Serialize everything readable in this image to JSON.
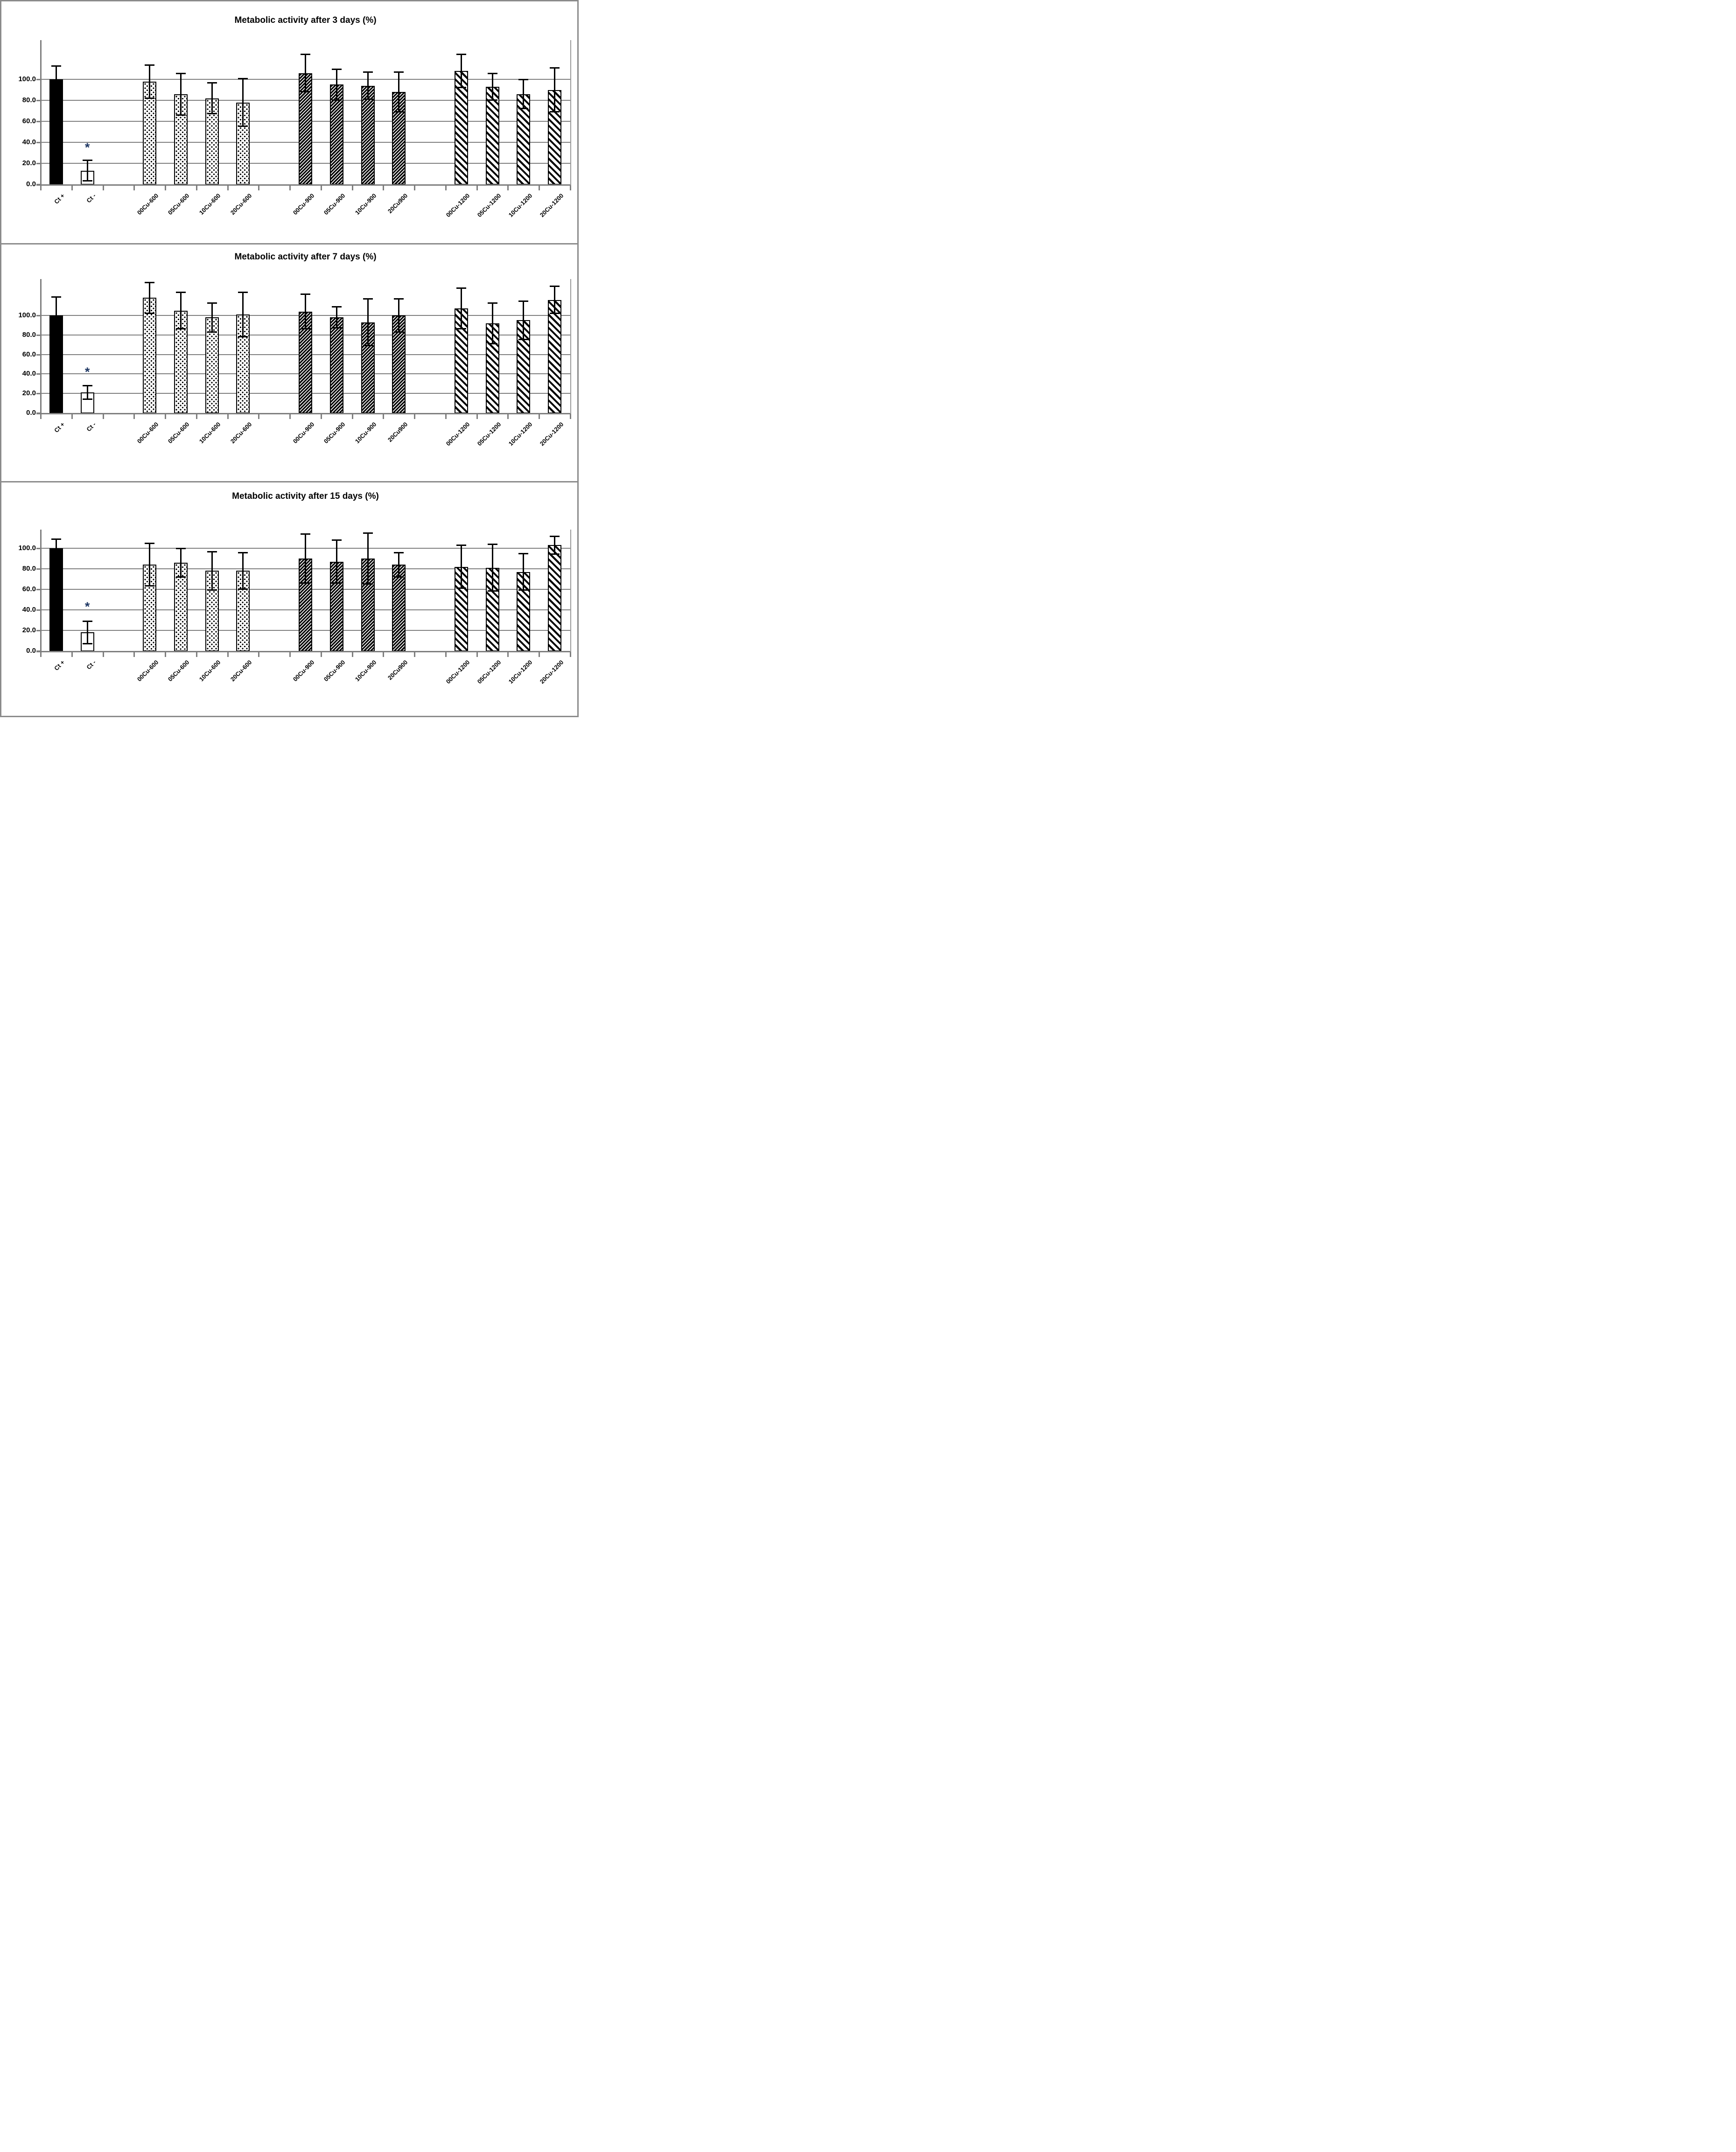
{
  "figure": {
    "border_color": "#8c8c8c",
    "grid_color": "#808080",
    "bar_border_color": "#000000",
    "significance_color": "#1f3864"
  },
  "bar_patterns": [
    "solid",
    "open",
    "dots",
    "dots",
    "dots",
    "dots",
    "hatch-fine",
    "hatch-fine",
    "hatch-fine",
    "hatch-fine",
    "hatch-coarse",
    "hatch-coarse",
    "hatch-coarse",
    "hatch-coarse"
  ],
  "chart_data": [
    {
      "type": "bar",
      "title": "Metabolic activity after 3 days (%)",
      "xlabel": "",
      "ylabel": "",
      "ylim": [
        0,
        137
      ],
      "grid": true,
      "yticks": [
        0,
        20,
        40,
        60,
        80,
        100
      ],
      "ytick_labels": [
        "0.0",
        "20.0",
        "40.0",
        "60.0",
        "80.0",
        "100.0"
      ],
      "categories": [
        "Ct +",
        "Ct -",
        "00Cu-600",
        "05Cu-600",
        "10Cu-600",
        "20Cu-600",
        "00Cu-900",
        "05Cu-900",
        "10Cu-900",
        "20Cu900",
        "00Cu-1200",
        "05Cu-1200",
        "10Cu-1200",
        "20Cu-1200"
      ],
      "values": [
        100,
        13,
        98,
        86,
        82,
        78,
        106,
        95,
        94,
        88,
        108,
        93,
        86,
        90
      ],
      "errors": [
        13,
        10,
        16,
        20,
        15,
        23,
        18,
        15,
        13,
        19,
        16,
        13,
        14,
        21
      ],
      "annotations": [
        {
          "category": "Ct -",
          "text": "*",
          "y": 35
        }
      ]
    },
    {
      "type": "bar",
      "title": "Metabolic activity after 7 days (%)",
      "xlabel": "",
      "ylabel": "",
      "ylim": [
        0,
        137
      ],
      "grid": true,
      "yticks": [
        0,
        20,
        40,
        60,
        80,
        100
      ],
      "ytick_labels": [
        "0.0",
        "20.0",
        "40.0",
        "60.0",
        "80.0",
        "100.0"
      ],
      "categories": [
        "Ct +",
        "Ct -",
        "00Cu-600",
        "05Cu-600",
        "10Cu-600",
        "20Cu-600",
        "00Cu-900",
        "05Cu-900",
        "10Cu-900",
        "20Cu900",
        "00Cu-1200",
        "05Cu-1200",
        "10Cu-1200",
        "20Cu-1200"
      ],
      "values": [
        100,
        21,
        118,
        105,
        98,
        101,
        104,
        98,
        93,
        100,
        107,
        92,
        95,
        116
      ],
      "errors": [
        19,
        7,
        16,
        19,
        15,
        23,
        18,
        11,
        24,
        17,
        21,
        21,
        20,
        14
      ],
      "annotations": [
        {
          "category": "Ct -",
          "text": "*",
          "y": 42
        }
      ]
    },
    {
      "type": "bar",
      "title": "Metabolic activity after 15 days (%)",
      "xlabel": "",
      "ylabel": "",
      "ylim": [
        0,
        118
      ],
      "grid": true,
      "yticks": [
        0,
        20,
        40,
        60,
        80,
        100
      ],
      "ytick_labels": [
        "0.0",
        "20.0",
        "40.0",
        "60.0",
        "80.0",
        "100.0"
      ],
      "categories": [
        "Ct +",
        "Ct -",
        "00Cu-600",
        "05Cu-600",
        "10Cu-600",
        "20Cu-600",
        "00Cu-900",
        "05Cu-900",
        "10Cu-900",
        "20Cu900",
        "00Cu-1200",
        "05Cu-1200",
        "10Cu-1200",
        "20Cu-1200"
      ],
      "values": [
        100,
        18,
        84,
        86,
        78,
        78,
        90,
        87,
        90,
        84,
        82,
        81,
        77,
        103
      ],
      "errors": [
        9,
        11,
        21,
        14,
        19,
        18,
        24,
        21,
        25,
        12,
        21,
        23,
        18,
        9
      ],
      "annotations": [
        {
          "category": "Ct -",
          "text": "*",
          "y": 43
        }
      ]
    }
  ]
}
